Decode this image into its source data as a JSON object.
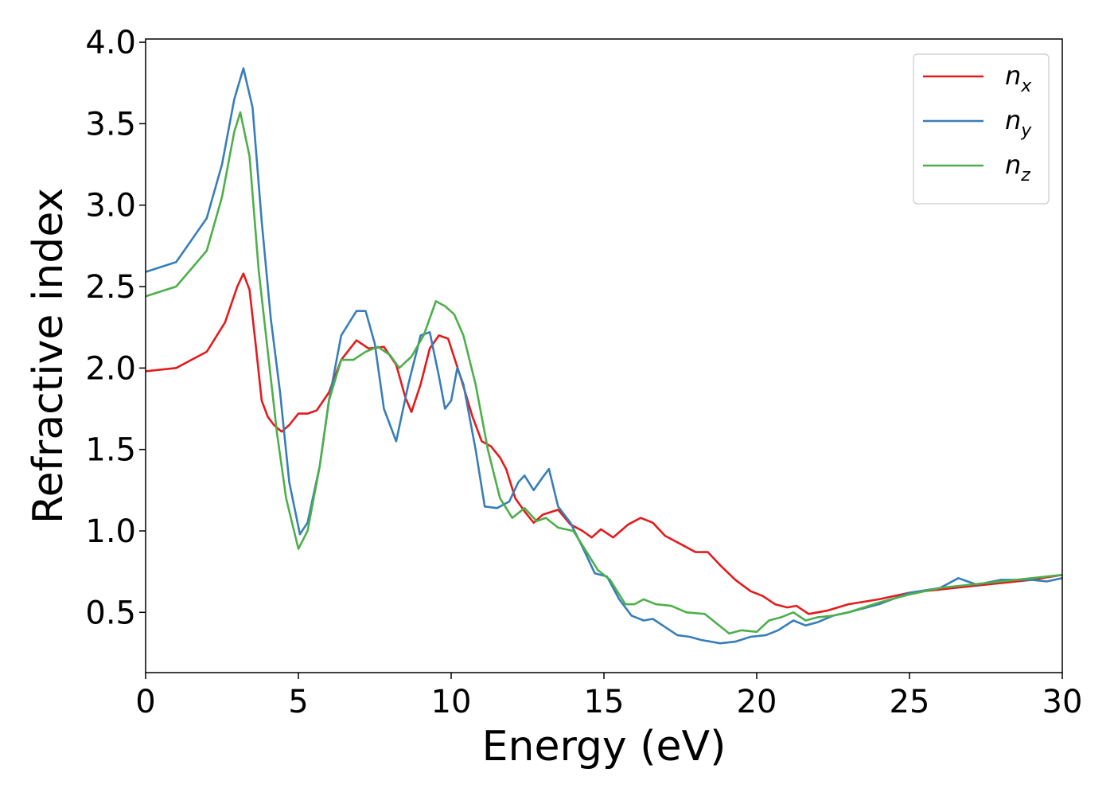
{
  "chart_data": {
    "type": "line",
    "xlabel": "Energy (eV)",
    "ylabel": "Refractive index",
    "xlim": [
      0,
      30
    ],
    "ylim": [
      0.13,
      4.02
    ],
    "xticks": [
      0,
      5,
      10,
      15,
      20,
      25,
      30
    ],
    "xtick_labels": [
      "0",
      "5",
      "10",
      "15",
      "20",
      "25",
      "30"
    ],
    "yticks": [
      0.5,
      1.0,
      1.5,
      2.0,
      2.5,
      3.0,
      3.5,
      4.0
    ],
    "ytick_labels": [
      "0.5",
      "1.0",
      "1.5",
      "2.0",
      "2.5",
      "3.0",
      "3.5",
      "4.0"
    ],
    "grid": false,
    "legend_position": "top-right",
    "series": [
      {
        "name": "n_x",
        "label_base": "n",
        "label_sub": "x",
        "color": "#e41a1c",
        "points": [
          [
            0.0,
            1.98
          ],
          [
            1.0,
            2.0
          ],
          [
            2.0,
            2.1
          ],
          [
            2.6,
            2.28
          ],
          [
            3.0,
            2.5
          ],
          [
            3.2,
            2.58
          ],
          [
            3.4,
            2.48
          ],
          [
            3.6,
            2.15
          ],
          [
            3.8,
            1.8
          ],
          [
            4.0,
            1.7
          ],
          [
            4.2,
            1.65
          ],
          [
            4.45,
            1.61
          ],
          [
            4.7,
            1.65
          ],
          [
            5.0,
            1.72
          ],
          [
            5.3,
            1.72
          ],
          [
            5.6,
            1.74
          ],
          [
            6.0,
            1.85
          ],
          [
            6.4,
            2.05
          ],
          [
            6.9,
            2.17
          ],
          [
            7.3,
            2.12
          ],
          [
            7.8,
            2.13
          ],
          [
            8.2,
            2.02
          ],
          [
            8.5,
            1.82
          ],
          [
            8.7,
            1.73
          ],
          [
            9.0,
            1.9
          ],
          [
            9.3,
            2.12
          ],
          [
            9.6,
            2.2
          ],
          [
            9.9,
            2.18
          ],
          [
            10.3,
            1.95
          ],
          [
            10.7,
            1.7
          ],
          [
            11.0,
            1.55
          ],
          [
            11.3,
            1.52
          ],
          [
            11.6,
            1.45
          ],
          [
            11.8,
            1.38
          ],
          [
            12.1,
            1.2
          ],
          [
            12.4,
            1.12
          ],
          [
            12.7,
            1.05
          ],
          [
            13.0,
            1.1
          ],
          [
            13.5,
            1.13
          ],
          [
            13.9,
            1.04
          ],
          [
            14.3,
            1.0
          ],
          [
            14.6,
            0.96
          ],
          [
            14.9,
            1.01
          ],
          [
            15.3,
            0.96
          ],
          [
            15.8,
            1.04
          ],
          [
            16.2,
            1.08
          ],
          [
            16.6,
            1.05
          ],
          [
            17.0,
            0.97
          ],
          [
            17.5,
            0.92
          ],
          [
            18.0,
            0.87
          ],
          [
            18.4,
            0.87
          ],
          [
            18.8,
            0.79
          ],
          [
            19.3,
            0.7
          ],
          [
            19.8,
            0.63
          ],
          [
            20.2,
            0.6
          ],
          [
            20.6,
            0.55
          ],
          [
            21.0,
            0.53
          ],
          [
            21.3,
            0.54
          ],
          [
            21.7,
            0.49
          ],
          [
            22.3,
            0.51
          ],
          [
            23.0,
            0.55
          ],
          [
            24.0,
            0.58
          ],
          [
            25.0,
            0.62
          ],
          [
            26.0,
            0.64
          ],
          [
            27.0,
            0.66
          ],
          [
            28.0,
            0.68
          ],
          [
            29.0,
            0.7
          ],
          [
            30.0,
            0.73
          ]
        ]
      },
      {
        "name": "n_y",
        "label_base": "n",
        "label_sub": "y",
        "color": "#377eb8",
        "points": [
          [
            0.0,
            2.59
          ],
          [
            1.0,
            2.65
          ],
          [
            2.0,
            2.92
          ],
          [
            2.5,
            3.25
          ],
          [
            2.9,
            3.65
          ],
          [
            3.2,
            3.84
          ],
          [
            3.5,
            3.6
          ],
          [
            3.8,
            2.9
          ],
          [
            4.1,
            2.3
          ],
          [
            4.4,
            1.85
          ],
          [
            4.7,
            1.3
          ],
          [
            5.05,
            0.98
          ],
          [
            5.3,
            1.05
          ],
          [
            5.7,
            1.4
          ],
          [
            6.0,
            1.8
          ],
          [
            6.4,
            2.2
          ],
          [
            6.9,
            2.35
          ],
          [
            7.2,
            2.35
          ],
          [
            7.5,
            2.15
          ],
          [
            7.8,
            1.75
          ],
          [
            8.2,
            1.55
          ],
          [
            8.6,
            1.9
          ],
          [
            9.0,
            2.2
          ],
          [
            9.3,
            2.22
          ],
          [
            9.6,
            1.95
          ],
          [
            9.8,
            1.75
          ],
          [
            10.0,
            1.8
          ],
          [
            10.2,
            2.0
          ],
          [
            10.4,
            1.9
          ],
          [
            10.8,
            1.5
          ],
          [
            11.1,
            1.15
          ],
          [
            11.5,
            1.14
          ],
          [
            11.9,
            1.18
          ],
          [
            12.2,
            1.3
          ],
          [
            12.4,
            1.34
          ],
          [
            12.7,
            1.25
          ],
          [
            13.0,
            1.33
          ],
          [
            13.2,
            1.38
          ],
          [
            13.5,
            1.15
          ],
          [
            13.9,
            1.05
          ],
          [
            14.3,
            0.9
          ],
          [
            14.7,
            0.74
          ],
          [
            15.1,
            0.72
          ],
          [
            15.5,
            0.58
          ],
          [
            15.9,
            0.48
          ],
          [
            16.3,
            0.45
          ],
          [
            16.6,
            0.46
          ],
          [
            17.0,
            0.41
          ],
          [
            17.4,
            0.36
          ],
          [
            17.8,
            0.35
          ],
          [
            18.2,
            0.33
          ],
          [
            18.8,
            0.31
          ],
          [
            19.3,
            0.32
          ],
          [
            19.8,
            0.35
          ],
          [
            20.3,
            0.36
          ],
          [
            20.7,
            0.39
          ],
          [
            21.2,
            0.45
          ],
          [
            21.6,
            0.42
          ],
          [
            22.0,
            0.44
          ],
          [
            22.5,
            0.48
          ],
          [
            23.0,
            0.5
          ],
          [
            24.0,
            0.55
          ],
          [
            25.0,
            0.62
          ],
          [
            26.0,
            0.65
          ],
          [
            26.6,
            0.71
          ],
          [
            27.2,
            0.67
          ],
          [
            28.0,
            0.7
          ],
          [
            29.0,
            0.7
          ],
          [
            29.5,
            0.69
          ],
          [
            30.0,
            0.71
          ]
        ]
      },
      {
        "name": "n_z",
        "label_base": "n",
        "label_sub": "z",
        "color": "#4daf4a",
        "points": [
          [
            0.0,
            2.44
          ],
          [
            1.0,
            2.5
          ],
          [
            2.0,
            2.72
          ],
          [
            2.5,
            3.05
          ],
          [
            2.9,
            3.45
          ],
          [
            3.1,
            3.57
          ],
          [
            3.4,
            3.3
          ],
          [
            3.7,
            2.6
          ],
          [
            4.0,
            2.1
          ],
          [
            4.3,
            1.6
          ],
          [
            4.6,
            1.2
          ],
          [
            5.0,
            0.89
          ],
          [
            5.3,
            1.0
          ],
          [
            5.7,
            1.4
          ],
          [
            6.0,
            1.8
          ],
          [
            6.4,
            2.05
          ],
          [
            6.8,
            2.05
          ],
          [
            7.2,
            2.1
          ],
          [
            7.6,
            2.13
          ],
          [
            8.0,
            2.08
          ],
          [
            8.3,
            2.0
          ],
          [
            8.7,
            2.07
          ],
          [
            9.1,
            2.2
          ],
          [
            9.5,
            2.41
          ],
          [
            9.8,
            2.38
          ],
          [
            10.1,
            2.33
          ],
          [
            10.4,
            2.2
          ],
          [
            10.8,
            1.9
          ],
          [
            11.2,
            1.5
          ],
          [
            11.6,
            1.2
          ],
          [
            12.0,
            1.08
          ],
          [
            12.4,
            1.14
          ],
          [
            12.8,
            1.06
          ],
          [
            13.1,
            1.08
          ],
          [
            13.5,
            1.02
          ],
          [
            14.0,
            1.0
          ],
          [
            14.4,
            0.88
          ],
          [
            14.8,
            0.76
          ],
          [
            15.2,
            0.7
          ],
          [
            15.7,
            0.55
          ],
          [
            16.0,
            0.55
          ],
          [
            16.3,
            0.58
          ],
          [
            16.7,
            0.55
          ],
          [
            17.2,
            0.54
          ],
          [
            17.7,
            0.5
          ],
          [
            18.3,
            0.49
          ],
          [
            18.7,
            0.43
          ],
          [
            19.1,
            0.37
          ],
          [
            19.5,
            0.39
          ],
          [
            20.0,
            0.38
          ],
          [
            20.4,
            0.45
          ],
          [
            20.8,
            0.47
          ],
          [
            21.2,
            0.5
          ],
          [
            21.6,
            0.45
          ],
          [
            22.0,
            0.47
          ],
          [
            22.5,
            0.48
          ],
          [
            23.0,
            0.5
          ],
          [
            24.0,
            0.56
          ],
          [
            25.0,
            0.61
          ],
          [
            26.0,
            0.65
          ],
          [
            27.0,
            0.67
          ],
          [
            28.0,
            0.69
          ],
          [
            29.0,
            0.71
          ],
          [
            30.0,
            0.73
          ]
        ]
      }
    ]
  }
}
